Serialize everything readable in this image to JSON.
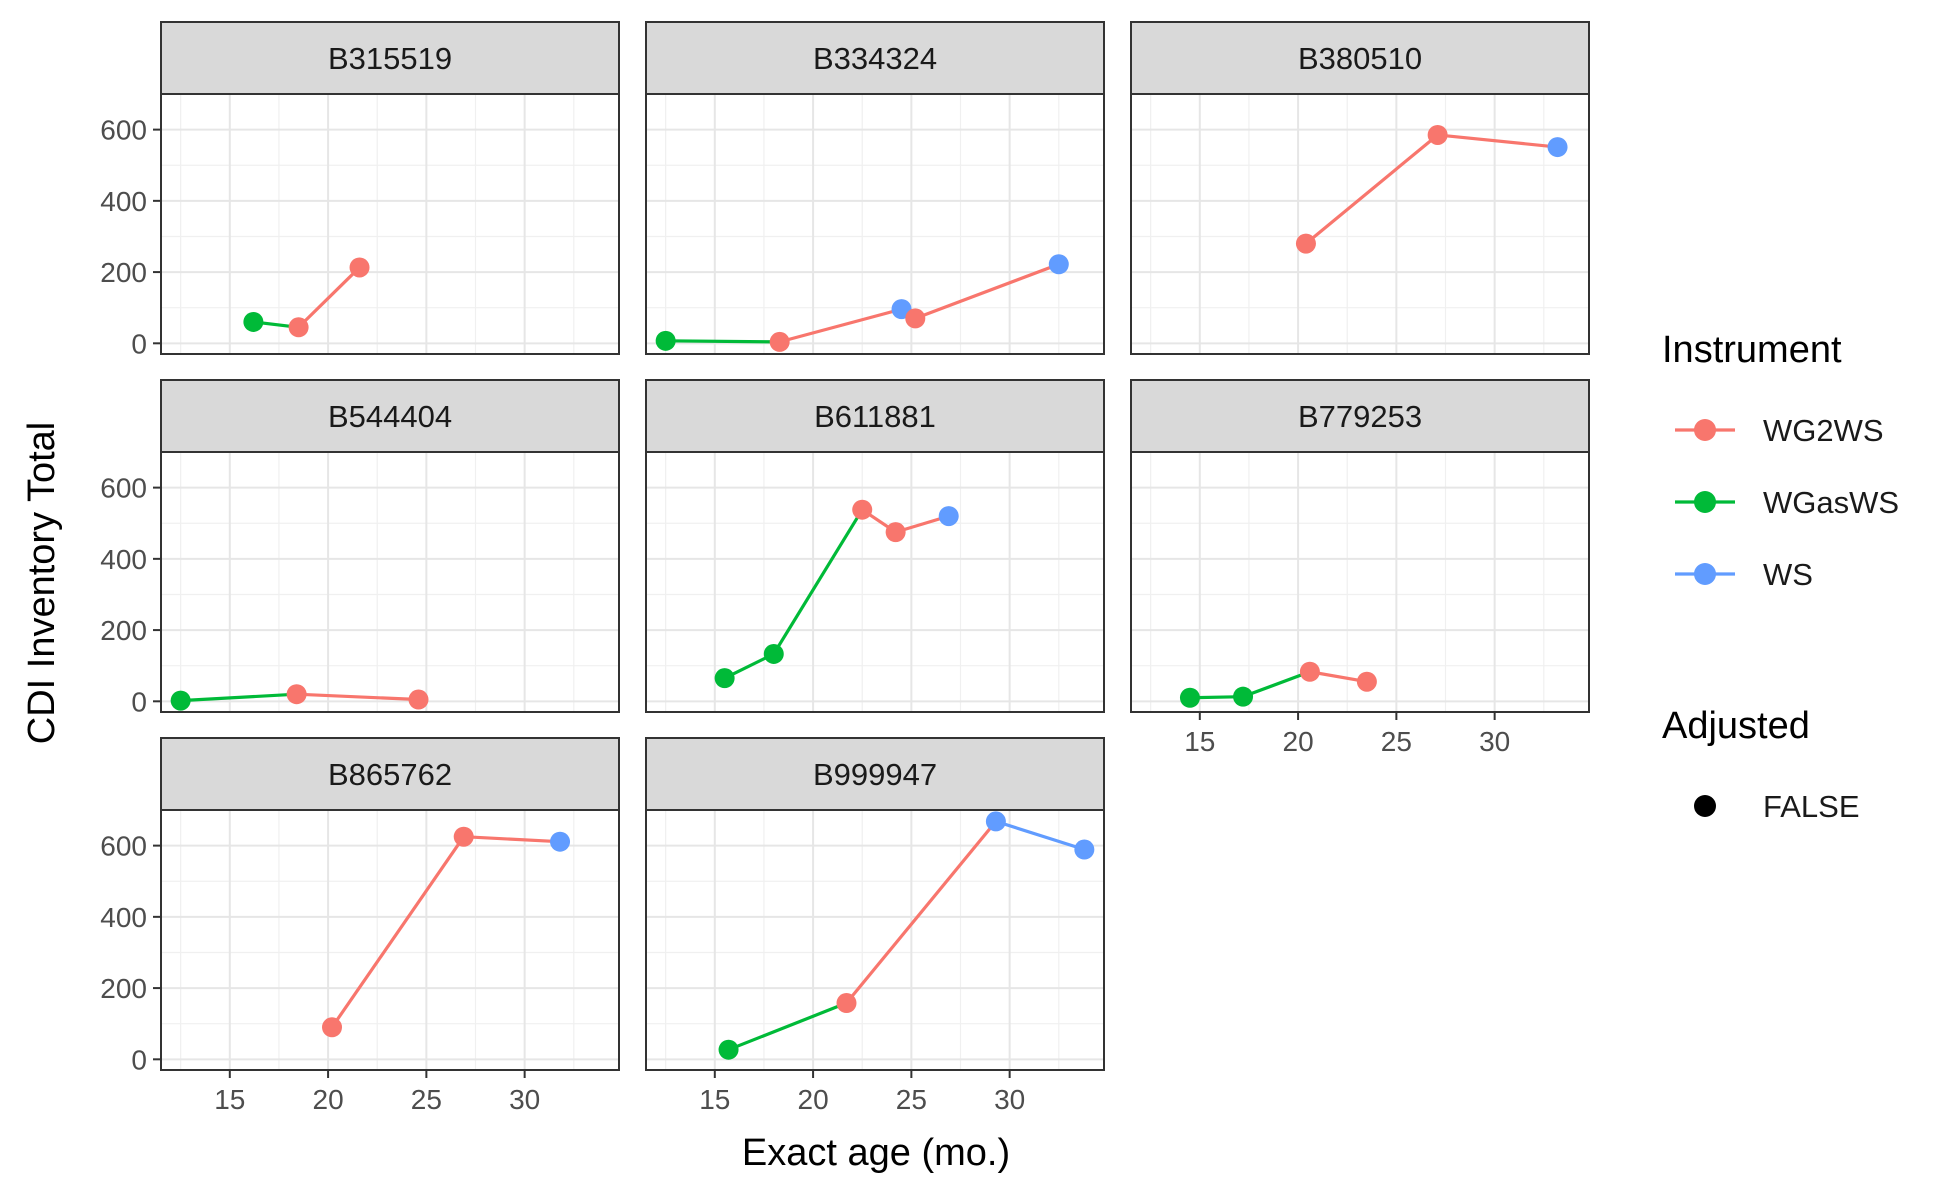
{
  "chart_data": {
    "type": "line",
    "facet_type": "small-multiples",
    "xlabel": "Exact age (mo.)",
    "ylabel": "CDI Inventory Total",
    "xlim": [
      11.5,
      34.8
    ],
    "ylim": [
      -30,
      700
    ],
    "x_ticks": [
      15,
      20,
      25,
      30
    ],
    "x_tick_labels": [
      "15",
      "20",
      "25",
      "30"
    ],
    "y_ticks": [
      0,
      200,
      400,
      600
    ],
    "y_tick_labels": [
      "0",
      "200",
      "400",
      "600"
    ],
    "grid": true,
    "legend_position": "right",
    "colors": {
      "WG2WS": "#F8766D",
      "WGasWS": "#00BA38",
      "WS": "#619CFF"
    },
    "legend": {
      "instrument_title": "Instrument",
      "instrument_entries": [
        "WG2WS",
        "WGasWS",
        "WS"
      ],
      "adjusted_title": "Adjusted",
      "adjusted_entries": [
        "FALSE"
      ]
    },
    "facets": [
      {
        "label": "B315519",
        "points": [
          {
            "x": 16.2,
            "y": 60,
            "instrument": "WGasWS"
          },
          {
            "x": 18.5,
            "y": 45,
            "instrument": "WG2WS"
          },
          {
            "x": 21.6,
            "y": 213,
            "instrument": "WG2WS"
          }
        ]
      },
      {
        "label": "B334324",
        "points": [
          {
            "x": 12.5,
            "y": 7,
            "instrument": "WGasWS"
          },
          {
            "x": 18.3,
            "y": 4,
            "instrument": "WG2WS"
          },
          {
            "x": 24.5,
            "y": 96,
            "instrument": "WS"
          },
          {
            "x": 25.2,
            "y": 70,
            "instrument": "WG2WS"
          },
          {
            "x": 32.5,
            "y": 222,
            "instrument": "WS"
          }
        ]
      },
      {
        "label": "B380510",
        "points": [
          {
            "x": 20.4,
            "y": 280,
            "instrument": "WG2WS"
          },
          {
            "x": 27.1,
            "y": 585,
            "instrument": "WG2WS"
          },
          {
            "x": 33.2,
            "y": 551,
            "instrument": "WS"
          }
        ]
      },
      {
        "label": "B544404",
        "points": [
          {
            "x": 12.5,
            "y": 2,
            "instrument": "WGasWS"
          },
          {
            "x": 18.4,
            "y": 20,
            "instrument": "WG2WS"
          },
          {
            "x": 24.6,
            "y": 5,
            "instrument": "WG2WS"
          }
        ]
      },
      {
        "label": "B611881",
        "points": [
          {
            "x": 15.5,
            "y": 65,
            "instrument": "WGasWS"
          },
          {
            "x": 18.0,
            "y": 133,
            "instrument": "WGasWS"
          },
          {
            "x": 22.5,
            "y": 538,
            "instrument": "WG2WS"
          },
          {
            "x": 24.2,
            "y": 475,
            "instrument": "WG2WS"
          },
          {
            "x": 26.9,
            "y": 520,
            "instrument": "WS"
          }
        ]
      },
      {
        "label": "B779253",
        "points": [
          {
            "x": 14.5,
            "y": 10,
            "instrument": "WGasWS"
          },
          {
            "x": 17.2,
            "y": 13,
            "instrument": "WGasWS"
          },
          {
            "x": 20.6,
            "y": 83,
            "instrument": "WG2WS"
          },
          {
            "x": 23.5,
            "y": 55,
            "instrument": "WG2WS"
          }
        ]
      },
      {
        "label": "B865762",
        "points": [
          {
            "x": 20.2,
            "y": 90,
            "instrument": "WG2WS"
          },
          {
            "x": 26.9,
            "y": 625,
            "instrument": "WG2WS"
          },
          {
            "x": 31.8,
            "y": 611,
            "instrument": "WS"
          }
        ]
      },
      {
        "label": "B999947",
        "points": [
          {
            "x": 15.7,
            "y": 27,
            "instrument": "WGasWS"
          },
          {
            "x": 21.7,
            "y": 158,
            "instrument": "WG2WS"
          },
          {
            "x": 29.3,
            "y": 668,
            "instrument": "WS"
          },
          {
            "x": 33.8,
            "y": 589,
            "instrument": "WS"
          }
        ]
      }
    ]
  }
}
